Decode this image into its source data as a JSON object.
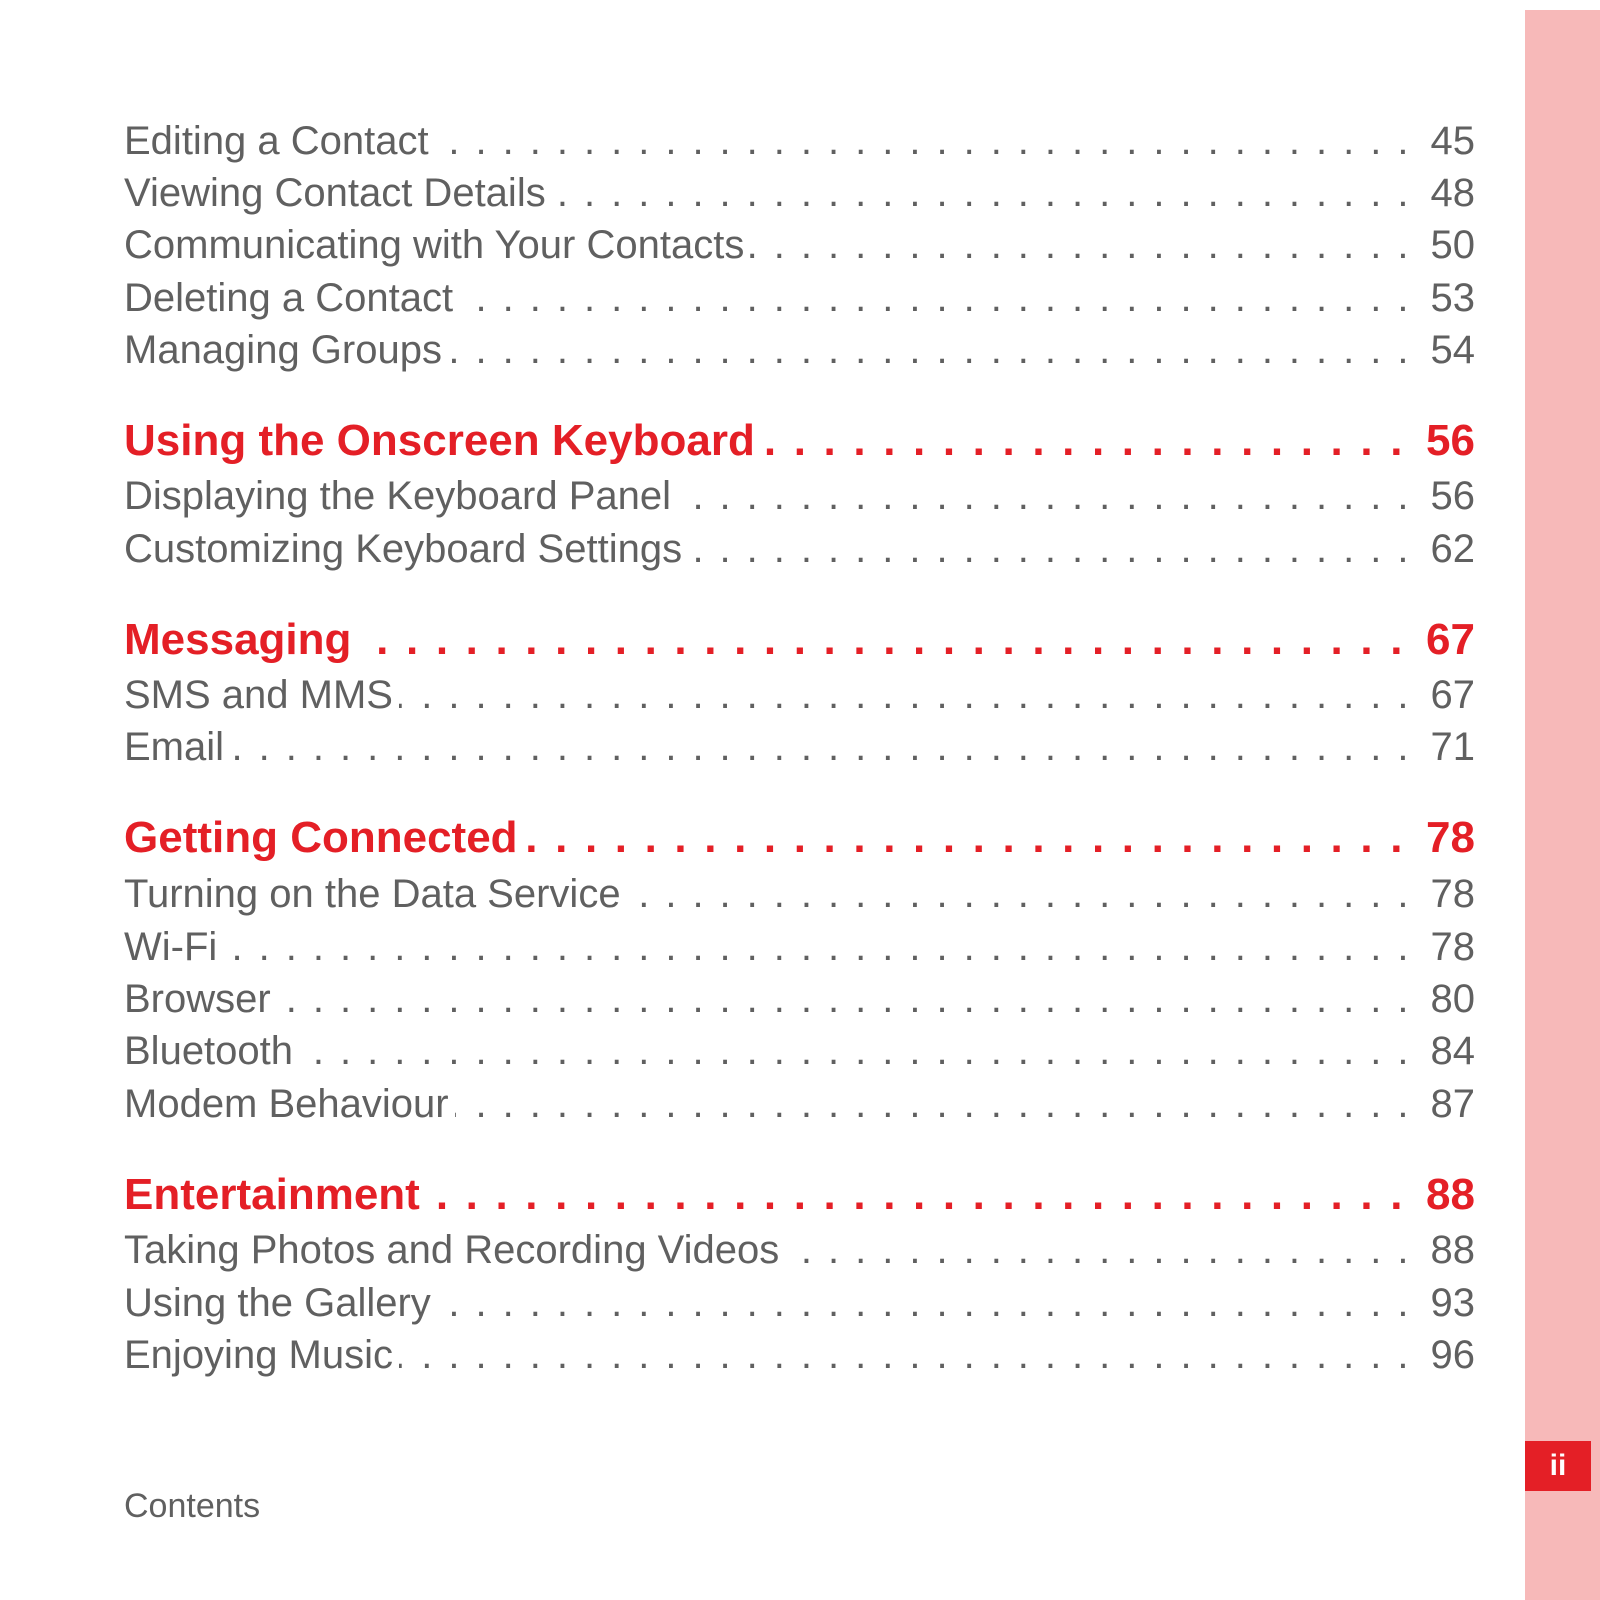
{
  "colors": {
    "accent": "#e41f26",
    "text": "#606060",
    "band": "#f7b9b9",
    "background": "#ffffff"
  },
  "leader": "................................................................................................................................",
  "toc": [
    {
      "level": "sub",
      "title": "Editing a Contact",
      "page": "45"
    },
    {
      "level": "sub",
      "title": "Viewing Contact Details",
      "page": "48"
    },
    {
      "level": "sub",
      "title": "Communicating with Your Contacts",
      "page": "50"
    },
    {
      "level": "sub",
      "title": "Deleting a Contact",
      "page": "53"
    },
    {
      "level": "sub",
      "title": "Managing Groups",
      "page": "54"
    },
    {
      "level": "chapter",
      "title": "Using the Onscreen Keyboard",
      "page": "56"
    },
    {
      "level": "sub",
      "title": "Displaying the Keyboard Panel",
      "page": "56"
    },
    {
      "level": "sub",
      "title": "Customizing Keyboard Settings",
      "page": "62"
    },
    {
      "level": "chapter",
      "title": "Messaging",
      "page": "67"
    },
    {
      "level": "sub",
      "title": "SMS and MMS",
      "page": "67"
    },
    {
      "level": "sub",
      "title": "Email",
      "page": "71"
    },
    {
      "level": "chapter",
      "title": "Getting Connected",
      "page": "78"
    },
    {
      "level": "sub",
      "title": "Turning on the Data Service",
      "page": "78"
    },
    {
      "level": "sub",
      "title": "Wi-Fi",
      "page": "78"
    },
    {
      "level": "sub",
      "title": "Browser",
      "page": "80"
    },
    {
      "level": "sub",
      "title": "Bluetooth",
      "page": "84"
    },
    {
      "level": "sub",
      "title": "Modem Behaviour",
      "page": "87"
    },
    {
      "level": "chapter",
      "title": "Entertainment",
      "page": "88"
    },
    {
      "level": "sub",
      "title": "Taking Photos and Recording Videos",
      "page": "88"
    },
    {
      "level": "sub",
      "title": "Using the Gallery",
      "page": "93"
    },
    {
      "level": "sub",
      "title": "Enjoying Music",
      "page": "96"
    }
  ],
  "footer": {
    "section_label": "Contents",
    "page_number": "ii"
  }
}
